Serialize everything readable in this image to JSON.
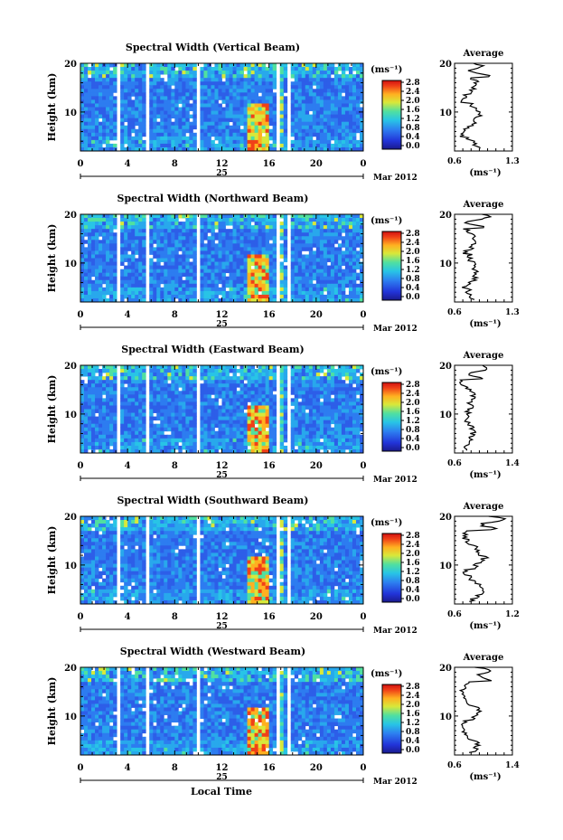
{
  "figure": {
    "global_xlabel": "Local Time",
    "date_label": "Mar 2012",
    "day_label": "25"
  },
  "chart_data": [
    {
      "type": "heatmap",
      "title": "Spectral Width (Vertical Beam)",
      "ylabel": "Height (km)",
      "xlabel": "Local Time",
      "x_ticks": [
        "0",
        "4",
        "8",
        "12",
        "16",
        "20",
        "0"
      ],
      "xlim": [
        0,
        24
      ],
      "y_ticks": [
        "20",
        "10"
      ],
      "ylim": [
        2,
        20
      ],
      "colorbar": {
        "label": "(ms⁻¹)",
        "ticks": [
          "0.0",
          "0.4",
          "0.8",
          "1.2",
          "1.6",
          "2.0",
          "2.4",
          "2.8"
        ],
        "range": [
          0,
          2.8
        ]
      },
      "profile": {
        "title": "Average",
        "xlabel": "(ms⁻¹)",
        "x_ticks": [
          "0.6",
          "1.3"
        ],
        "xlim": [
          0.6,
          1.3
        ],
        "y_ticks": [
          "20",
          "10"
        ]
      }
    },
    {
      "type": "heatmap",
      "title": "Spectral Width (Northward Beam)",
      "ylabel": "Height (km)",
      "xlabel": "Local Time",
      "x_ticks": [
        "0",
        "4",
        "8",
        "12",
        "16",
        "20",
        "0"
      ],
      "xlim": [
        0,
        24
      ],
      "y_ticks": [
        "20",
        "10"
      ],
      "ylim": [
        2,
        20
      ],
      "colorbar": {
        "label": "(ms⁻¹)",
        "ticks": [
          "0.0",
          "0.4",
          "0.8",
          "1.2",
          "1.6",
          "2.0",
          "2.4",
          "2.8"
        ],
        "range": [
          0,
          2.8
        ]
      },
      "profile": {
        "title": "Average",
        "xlabel": "(ms⁻¹)",
        "x_ticks": [
          "0.6",
          "1.3"
        ],
        "xlim": [
          0.6,
          1.3
        ],
        "y_ticks": [
          "20",
          "10"
        ]
      }
    },
    {
      "type": "heatmap",
      "title": "Spectral Width (Eastward Beam)",
      "ylabel": "Height (km)",
      "xlabel": "Local Time",
      "x_ticks": [
        "0",
        "4",
        "8",
        "12",
        "16",
        "20",
        "0"
      ],
      "xlim": [
        0,
        24
      ],
      "y_ticks": [
        "20",
        "10"
      ],
      "ylim": [
        2,
        20
      ],
      "colorbar": {
        "label": "(ms⁻¹)",
        "ticks": [
          "0.0",
          "0.4",
          "0.8",
          "1.2",
          "1.6",
          "2.0",
          "2.4",
          "2.8"
        ],
        "range": [
          0,
          2.8
        ]
      },
      "profile": {
        "title": "Average",
        "xlabel": "(ms⁻¹)",
        "x_ticks": [
          "0.6",
          "1.4"
        ],
        "xlim": [
          0.6,
          1.4
        ],
        "y_ticks": [
          "20",
          "10"
        ]
      }
    },
    {
      "type": "heatmap",
      "title": "Spectral Width (Southward Beam)",
      "ylabel": "Height (km)",
      "xlabel": "Local Time",
      "x_ticks": [
        "0",
        "4",
        "8",
        "12",
        "16",
        "20",
        "0"
      ],
      "xlim": [
        0,
        24
      ],
      "y_ticks": [
        "20",
        "10"
      ],
      "ylim": [
        2,
        20
      ],
      "colorbar": {
        "label": "(ms⁻¹)",
        "ticks": [
          "0.0",
          "0.4",
          "0.8",
          "1.2",
          "1.6",
          "2.0",
          "2.4",
          "2.8"
        ],
        "range": [
          0,
          2.8
        ]
      },
      "profile": {
        "title": "Average",
        "xlabel": "(ms⁻¹)",
        "x_ticks": [
          "0.6",
          "1.2"
        ],
        "xlim": [
          0.6,
          1.2
        ],
        "y_ticks": [
          "20",
          "10"
        ]
      }
    },
    {
      "type": "heatmap",
      "title": "Spectral Width (Westward Beam)",
      "ylabel": "Height (km)",
      "xlabel": "Local Time",
      "x_ticks": [
        "0",
        "4",
        "8",
        "12",
        "16",
        "20",
        "0"
      ],
      "xlim": [
        0,
        24
      ],
      "y_ticks": [
        "20",
        "10"
      ],
      "ylim": [
        2,
        20
      ],
      "colorbar": {
        "label": "(ms⁻¹)",
        "ticks": [
          "0.0",
          "0.4",
          "0.8",
          "1.2",
          "1.6",
          "2.0",
          "2.4",
          "2.8"
        ],
        "range": [
          0,
          2.8
        ]
      },
      "profile": {
        "title": "Average",
        "xlabel": "(ms⁻¹)",
        "x_ticks": [
          "0.6",
          "1.4"
        ],
        "xlim": [
          0.6,
          1.4
        ],
        "y_ticks": [
          "20",
          "10"
        ]
      }
    }
  ]
}
